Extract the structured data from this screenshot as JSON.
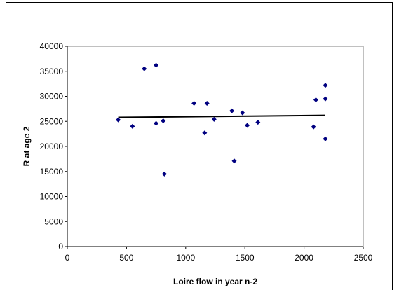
{
  "chart_data": {
    "type": "scatter",
    "title": "",
    "xlabel": "Loire flow in year n-2",
    "ylabel": "R at age 2",
    "xlim": [
      0,
      2500
    ],
    "ylim": [
      0,
      40000
    ],
    "xticks": [
      0,
      500,
      1000,
      1500,
      2000,
      2500
    ],
    "yticks": [
      0,
      5000,
      10000,
      15000,
      20000,
      25000,
      30000,
      35000,
      40000
    ],
    "grid": false,
    "legend": "none",
    "marker": "diamond",
    "colors": {
      "marker": "#000080",
      "trendline": "#000000",
      "axis": "#808080",
      "frame": "#000000"
    },
    "points": [
      {
        "x": 430,
        "y": 25300
      },
      {
        "x": 550,
        "y": 24000
      },
      {
        "x": 650,
        "y": 35500
      },
      {
        "x": 750,
        "y": 36200
      },
      {
        "x": 750,
        "y": 24600
      },
      {
        "x": 810,
        "y": 25100
      },
      {
        "x": 820,
        "y": 14500
      },
      {
        "x": 1070,
        "y": 28600
      },
      {
        "x": 1160,
        "y": 22700
      },
      {
        "x": 1180,
        "y": 28600
      },
      {
        "x": 1240,
        "y": 25400
      },
      {
        "x": 1390,
        "y": 27100
      },
      {
        "x": 1410,
        "y": 17100
      },
      {
        "x": 1480,
        "y": 26700
      },
      {
        "x": 1520,
        "y": 24200
      },
      {
        "x": 1610,
        "y": 24800
      },
      {
        "x": 2080,
        "y": 23900
      },
      {
        "x": 2100,
        "y": 29300
      },
      {
        "x": 2180,
        "y": 32200
      },
      {
        "x": 2180,
        "y": 29500
      },
      {
        "x": 2180,
        "y": 21500
      }
    ],
    "trendline": {
      "type": "linear",
      "x": [
        430,
        2180
      ],
      "y": [
        25800,
        26200
      ]
    }
  }
}
